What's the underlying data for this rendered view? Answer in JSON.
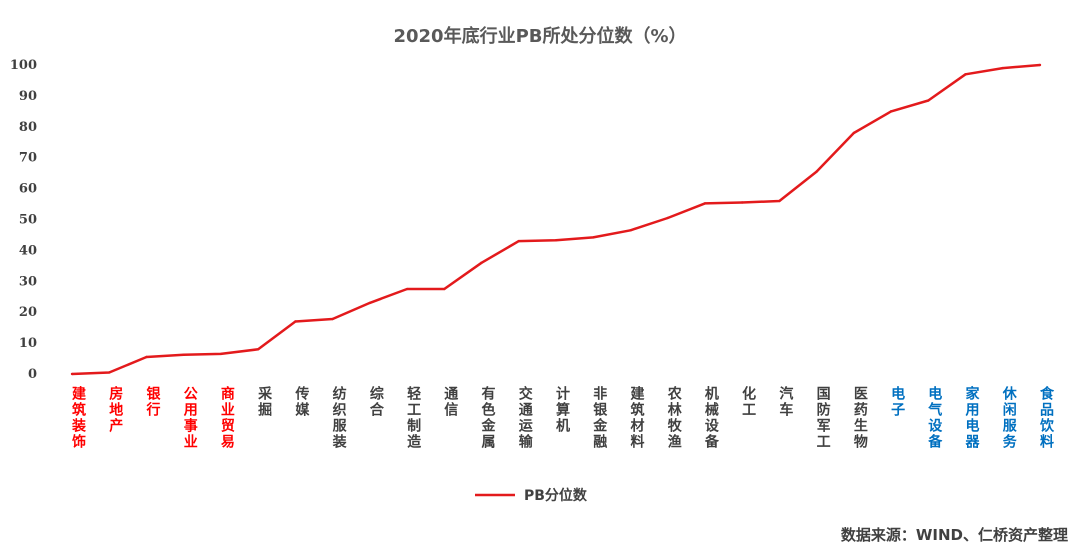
{
  "chart_data": {
    "type": "line",
    "title": "2020年底行业PB所处分位数（%）",
    "ylim": [
      0,
      100
    ],
    "yticks": [
      0,
      10,
      20,
      30,
      40,
      50,
      60,
      70,
      80,
      90,
      100
    ],
    "grid": false,
    "legend_position": "bottom",
    "categories": [
      "建筑装饰",
      "房地产",
      "银行",
      "公用事业",
      "商业贸易",
      "采掘",
      "传媒",
      "纺织服装",
      "综合",
      "轻工制造",
      "通信",
      "有色金属",
      "交通运输",
      "计算机",
      "非银金融",
      "建筑材料",
      "农林牧渔",
      "机械设备",
      "化工",
      "汽车",
      "国防军工",
      "医药生物",
      "电子",
      "电气设备",
      "家用电器",
      "休闲服务",
      "食品饮料"
    ],
    "category_colors": [
      "#ff0000",
      "#ff0000",
      "#ff0000",
      "#ff0000",
      "#ff0000",
      "#404040",
      "#404040",
      "#404040",
      "#404040",
      "#404040",
      "#404040",
      "#404040",
      "#404040",
      "#404040",
      "#404040",
      "#404040",
      "#404040",
      "#404040",
      "#404040",
      "#404040",
      "#404040",
      "#404040",
      "#0070c0",
      "#0070c0",
      "#0070c0",
      "#0070c0",
      "#0070c0"
    ],
    "series": [
      {
        "name": "PB分位数",
        "color": "#e31a1c",
        "values": [
          0,
          0.5,
          5.5,
          6.2,
          6.5,
          8,
          17,
          17.8,
          23,
          27.5,
          27.5,
          36,
          43,
          43.3,
          44.2,
          46.5,
          50.5,
          55.2,
          55.5,
          56,
          65.5,
          78,
          85,
          88.5,
          97,
          99,
          100
        ]
      }
    ]
  },
  "source_text": "数据来源：WIND、仁桥资产整理"
}
